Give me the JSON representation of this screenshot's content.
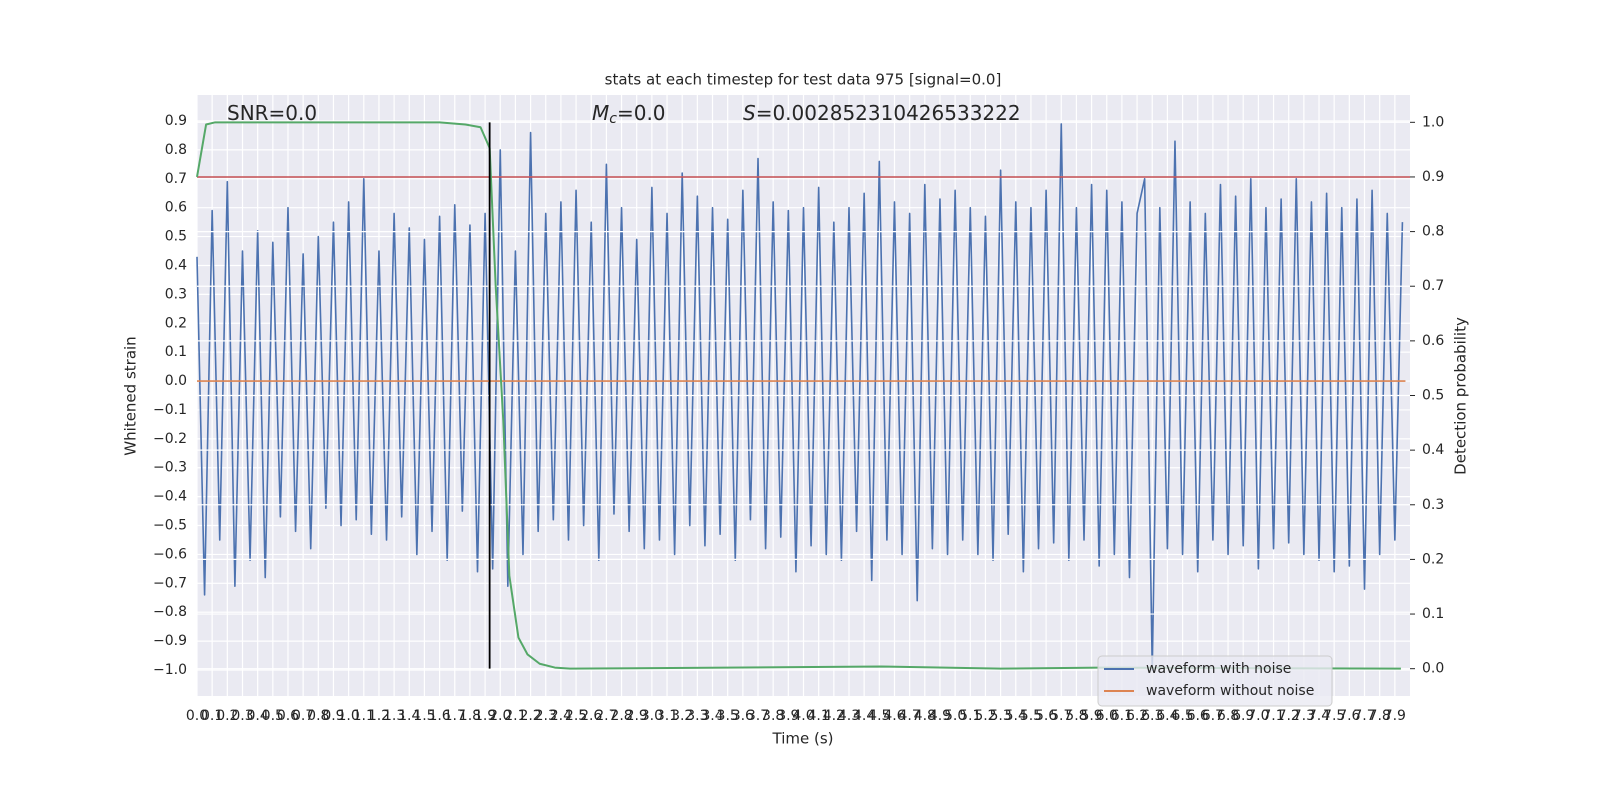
{
  "chart_data": {
    "type": "line",
    "title": "stats at each timestep for test data 975 [signal=0.0]",
    "xlabel": "Time (s)",
    "ylabel": "Whitened strain",
    "y2label": "Detection probability",
    "annotations": [
      {
        "text": "SNR=0.0"
      },
      {
        "symbol": "M",
        "subscript": "c",
        "text": "=0.0"
      },
      {
        "symbol": "S",
        "text": "=0.002852310426533222"
      }
    ],
    "xlim": [
      0,
      8.0
    ],
    "ylim": [
      -1.09,
      0.99
    ],
    "y2lim": [
      -0.05,
      1.05
    ],
    "grid": true,
    "legend": "lower right",
    "xticks": [
      {
        "value": 0,
        "label": "0.0"
      },
      0.1,
      0.2,
      0.3,
      0.4,
      0.5,
      0.6,
      0.7,
      0.8,
      0.9,
      {
        "value": 1,
        "label": "1.0"
      },
      1.1,
      1.2,
      1.3,
      1.4,
      1.5,
      1.6,
      1.7,
      1.8,
      1.9,
      {
        "value": 2,
        "label": "2.0"
      },
      2.1,
      2.2,
      2.3,
      2.4,
      2.5,
      2.6,
      2.7,
      2.8,
      2.9,
      {
        "value": 3,
        "label": "3.0"
      },
      3.1,
      3.2,
      3.3,
      3.4,
      3.5,
      3.6,
      3.7,
      3.8,
      3.9,
      {
        "value": 4,
        "label": "4.0"
      },
      4.1,
      4.2,
      4.3,
      4.4,
      4.5,
      4.6,
      4.7,
      4.8,
      4.9,
      {
        "value": 5,
        "label": "5.0"
      },
      5.1,
      5.2,
      5.3,
      5.4,
      5.5,
      5.6,
      5.7,
      5.8,
      5.9,
      {
        "value": 6,
        "label": "6.0"
      },
      6.1,
      6.2,
      6.3,
      6.4,
      6.5,
      6.6,
      6.7,
      6.8,
      6.9,
      {
        "value": 7,
        "label": "7.0"
      },
      7.1,
      7.2,
      7.3,
      7.4,
      7.5,
      7.6,
      7.7,
      7.8,
      7.9
    ],
    "yticks": [
      {
        "value": -1,
        "label": "−1.0"
      },
      {
        "value": -0.9,
        "label": "−0.9"
      },
      {
        "value": -0.8,
        "label": "−0.8"
      },
      {
        "value": -0.7,
        "label": "−0.7"
      },
      {
        "value": -0.6,
        "label": "−0.6"
      },
      {
        "value": -0.5,
        "label": "−0.5"
      },
      {
        "value": -0.4,
        "label": "−0.4"
      },
      {
        "value": -0.3,
        "label": "−0.3"
      },
      {
        "value": -0.2,
        "label": "−0.2"
      },
      {
        "value": -0.1,
        "label": "−0.1"
      },
      {
        "value": 0,
        "label": "0.0"
      },
      0.1,
      0.2,
      0.3,
      0.4,
      0.5,
      0.6,
      0.7,
      0.8,
      0.9
    ],
    "y2ticks": [
      {
        "value": 0,
        "label": "0.0"
      },
      0.1,
      0.2,
      0.3,
      0.4,
      0.5,
      0.6,
      0.7,
      0.8,
      0.9,
      {
        "value": 1,
        "label": "1.0"
      }
    ],
    "threshold": 0.9,
    "threshold_color": "#c44e52",
    "vline": 1.93,
    "vline_color": "#000000",
    "series": [
      {
        "name": "waveform with noise",
        "color": "#4c72b0",
        "x": [
          0,
          0.05,
          0.1,
          0.15,
          0.2,
          0.25,
          0.3,
          0.35,
          0.4,
          0.45,
          0.5,
          0.55,
          0.6,
          0.65,
          0.7,
          0.75,
          0.8,
          0.85,
          0.9,
          0.95,
          1,
          1.05,
          1.1,
          1.15,
          1.2,
          1.25,
          1.3,
          1.35,
          1.4,
          1.45,
          1.5,
          1.55,
          1.6,
          1.65,
          1.7,
          1.75,
          1.8,
          1.85,
          1.9,
          1.95,
          2,
          2.05,
          2.1,
          2.15,
          2.2,
          2.25,
          2.3,
          2.35,
          2.4,
          2.45,
          2.5,
          2.55,
          2.6,
          2.65,
          2.7,
          2.75,
          2.8,
          2.85,
          2.9,
          2.95,
          3,
          3.05,
          3.1,
          3.15,
          3.2,
          3.25,
          3.3,
          3.35,
          3.4,
          3.45,
          3.5,
          3.55,
          3.6,
          3.65,
          3.7,
          3.75,
          3.8,
          3.85,
          3.9,
          3.95,
          4,
          4.05,
          4.1,
          4.15,
          4.2,
          4.25,
          4.3,
          4.35,
          4.4,
          4.45,
          4.5,
          4.55,
          4.6,
          4.65,
          4.7,
          4.75,
          4.8,
          4.85,
          4.9,
          4.95,
          5,
          5.05,
          5.1,
          5.15,
          5.2,
          5.25,
          5.3,
          5.35,
          5.4,
          5.45,
          5.5,
          5.55,
          5.6,
          5.65,
          5.7,
          5.75,
          5.8,
          5.85,
          5.9,
          5.95,
          6,
          6.05,
          6.1,
          6.15,
          6.2,
          6.25,
          6.3,
          6.35,
          6.4,
          6.45,
          6.5,
          6.55,
          6.6,
          6.65,
          6.7,
          6.75,
          6.8,
          6.85,
          6.9,
          6.95,
          7,
          7.05,
          7.1,
          7.15,
          7.2,
          7.25,
          7.3,
          7.35,
          7.4,
          7.45,
          7.5,
          7.55,
          7.6,
          7.65,
          7.7,
          7.75,
          7.8,
          7.85,
          7.9,
          7.95
        ],
        "values": [
          0.43,
          -0.74,
          0.59,
          -0.55,
          0.69,
          -0.71,
          0.45,
          -0.62,
          0.52,
          -0.68,
          0.48,
          -0.47,
          0.6,
          -0.52,
          0.44,
          -0.58,
          0.5,
          -0.44,
          0.55,
          -0.5,
          0.62,
          -0.48,
          0.7,
          -0.53,
          0.45,
          -0.55,
          0.58,
          -0.47,
          0.53,
          -0.6,
          0.49,
          -0.52,
          0.57,
          -0.62,
          0.61,
          -0.45,
          0.54,
          -0.66,
          0.58,
          -0.65,
          0.8,
          -0.71,
          0.45,
          -0.6,
          0.86,
          -0.52,
          0.58,
          -0.48,
          0.62,
          -0.55,
          0.66,
          -0.5,
          0.55,
          -0.62,
          0.75,
          -0.46,
          0.6,
          -0.52,
          0.49,
          -0.58,
          0.67,
          -0.55,
          0.58,
          -0.6,
          0.72,
          -0.5,
          0.64,
          -0.57,
          0.6,
          -0.53,
          0.56,
          -0.62,
          0.66,
          -0.48,
          0.77,
          -0.58,
          0.62,
          -0.54,
          0.59,
          -0.66,
          0.6,
          -0.57,
          0.67,
          -0.6,
          0.55,
          -0.62,
          0.6,
          -0.52,
          0.65,
          -0.69,
          0.76,
          -0.55,
          0.62,
          -0.6,
          0.58,
          -0.76,
          0.68,
          -0.58,
          0.63,
          -0.6,
          0.66,
          -0.55,
          0.6,
          -0.6,
          0.57,
          -0.62,
          0.73,
          -0.53,
          0.62,
          -0.66,
          0.6,
          -0.58,
          0.66,
          -0.56,
          0.89,
          -0.62,
          0.6,
          -0.55,
          0.68,
          -0.64,
          0.66,
          -0.6,
          0.62,
          -0.68,
          0.58,
          0.7,
          -1.0,
          0.6,
          -0.58,
          0.83,
          -0.6,
          0.62,
          -0.66,
          0.58,
          -0.55,
          0.68,
          -0.6,
          0.64,
          -0.57,
          0.7,
          -0.65,
          0.6,
          -0.58,
          0.63,
          -0.56,
          0.7,
          -0.6,
          0.62,
          -0.62,
          0.65,
          -0.66,
          0.6,
          -0.64,
          0.63,
          -0.72,
          0.66,
          -0.6,
          0.58,
          -0.55,
          0.55
        ]
      },
      {
        "name": "waveform without noise",
        "color": "#dd8452",
        "x": [
          0,
          7.97
        ],
        "values": [
          0,
          0
        ]
      },
      {
        "color": "#55a868",
        "axis": "y2",
        "x": [
          0,
          0.06,
          0.12,
          0.42,
          1.6,
          1.77,
          1.87,
          1.93,
          1.97,
          2.02,
          2.06,
          2.12,
          2.18,
          2.26,
          2.36,
          2.46,
          4.51,
          5.3,
          5.96,
          7.94
        ],
        "values": [
          0.9,
          0.996,
          1.0,
          1.0,
          1.0,
          0.996,
          0.991,
          0.953,
          0.7,
          0.454,
          0.17,
          0.057,
          0.026,
          0.009,
          0.002,
          0,
          0.004,
          0,
          0.002,
          0
        ]
      }
    ]
  }
}
